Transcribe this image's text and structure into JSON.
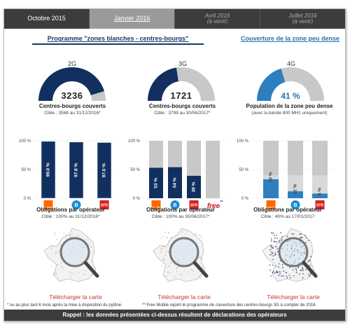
{
  "tabs": [
    {
      "label": "Octobre 2015",
      "sub": "",
      "state": "normal"
    },
    {
      "label": "Janvier 2016",
      "sub": "",
      "state": "active"
    },
    {
      "label": "Avril 2016",
      "sub": "(à venir)",
      "state": "future"
    },
    {
      "label": "Juillet 2016",
      "sub": "(à venir)",
      "state": "future"
    }
  ],
  "program_title": "Programme \"zones blanches - centres-bourgs\"",
  "coverage_title": "Couverture de la zone peu dense",
  "gauges": [
    {
      "gen": "2G",
      "value": "3236",
      "fraction": 0.907,
      "caption": "Centres-bourgs couverts",
      "sub": "Cible : 3568 au 31/12/2016*"
    },
    {
      "gen": "3G",
      "value": "1721",
      "fraction": 0.453,
      "caption": "Centres-bourgs couverts",
      "sub": "Cible : 3799 au 30/06/2017*"
    },
    {
      "gen": "4G",
      "value": "41 %",
      "fraction": 0.41,
      "caption": "Population de la zone peu dense",
      "sub": "(avec la bande 800 MHz uniquement)"
    }
  ],
  "axis": {
    "top": "100 %",
    "mid": "50 %",
    "bottom": "0 %"
  },
  "chart_data": [
    {
      "type": "bar",
      "title": "",
      "categories": [
        "Orange",
        "Bouygues",
        "SFR"
      ],
      "values": [
        99.0,
        97.8,
        97.0
      ],
      "labels": [
        "99.0 %",
        "97.8 %",
        "97.0 %"
      ],
      "ylim": [
        0,
        100
      ]
    },
    {
      "type": "bar",
      "title": "",
      "categories": [
        "Orange",
        "Bouygues",
        "SFR",
        "Free"
      ],
      "values": [
        53,
        54,
        39,
        0
      ],
      "labels": [
        "53 %",
        "54 %",
        "39 %",
        ""
      ],
      "ylim": [
        0,
        100
      ]
    },
    {
      "type": "bar",
      "title": "",
      "categories": [
        "Orange",
        "Bouygues",
        "SFR"
      ],
      "values": [
        33,
        12,
        8
      ],
      "labels": [
        "33 %",
        "12 %",
        "8 %"
      ],
      "ylim": [
        0,
        100
      ]
    }
  ],
  "obligations": [
    {
      "caption": "Obligations par opérateur",
      "sub": "Cible : 100% au 31/12/2016*"
    },
    {
      "caption": "Obligations par opérateur",
      "sub": "Cible : 100% au 30/06/2017*"
    },
    {
      "caption": "Obligations par opérateur",
      "sub": "Cible : 40% au 17/01/2017"
    }
  ],
  "operators": {
    "orange": "orange",
    "bouygues": "B",
    "sfr": "SFR",
    "free": "free",
    "free_mark": "**"
  },
  "download_label": "Télécharger la carte",
  "footnote_1": "* ou au plus tard 6 mois après la mise à disposition du pylône.",
  "footnote_2": "** Free Mobile rejoint le programme de couverture des centres-bourgs 3G à compter de 2016.",
  "bottom_note": "Rappel : les données présentées ci-dessus résultent de déclarations des opérateurs",
  "colors": {
    "navy": "#12305f",
    "blue": "#2e7fbf",
    "gray": "#c8c8c8",
    "orange": "#ff6600",
    "sfr": "#d4201f",
    "bouygues": "#1d8bd6"
  }
}
